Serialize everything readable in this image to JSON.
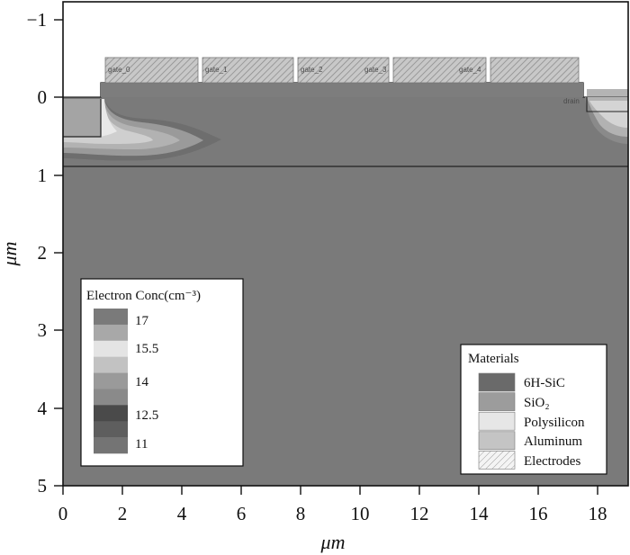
{
  "axes": {
    "x_title": "μm",
    "y_title": "μm",
    "x_ticks": [
      "0",
      "2",
      "4",
      "6",
      "8",
      "10",
      "12",
      "14",
      "16",
      "18"
    ],
    "y_ticks": [
      "−1",
      "0",
      "1",
      "2",
      "3",
      "4",
      "5"
    ]
  },
  "electrodes": {
    "gates": [
      "gate_0",
      "gate_1",
      "gate_2",
      "gate_3",
      "gate_4"
    ],
    "drain": "drain"
  },
  "conc_legend": {
    "title": "Electron Conc(cm⁻³)",
    "swatch_colors": [
      "#7a7a7a",
      "#a8a8a8",
      "#e4e4e4",
      "#c2c2c2",
      "#9a9a9a",
      "#8a8a8a",
      "#4a4a4a",
      "#5e5e5e",
      "#747474"
    ],
    "levels": [
      "17",
      "15.5",
      "14",
      "12.5",
      "11"
    ]
  },
  "materials_legend": {
    "title": "Materials",
    "items": [
      {
        "label": "6H-SiC",
        "color": "#6a6a6a"
      },
      {
        "label": "SiO₂",
        "color": "#9c9c9c"
      },
      {
        "label": "Polysilicon",
        "color": "#e6e6e6"
      },
      {
        "label": "Aluminum",
        "color": "#c4c4c4"
      },
      {
        "label": "Electrodes",
        "color": "hatch"
      }
    ]
  },
  "colors": {
    "substrate": "#7a7a7a",
    "gate_fill": "#b8b8b8"
  }
}
